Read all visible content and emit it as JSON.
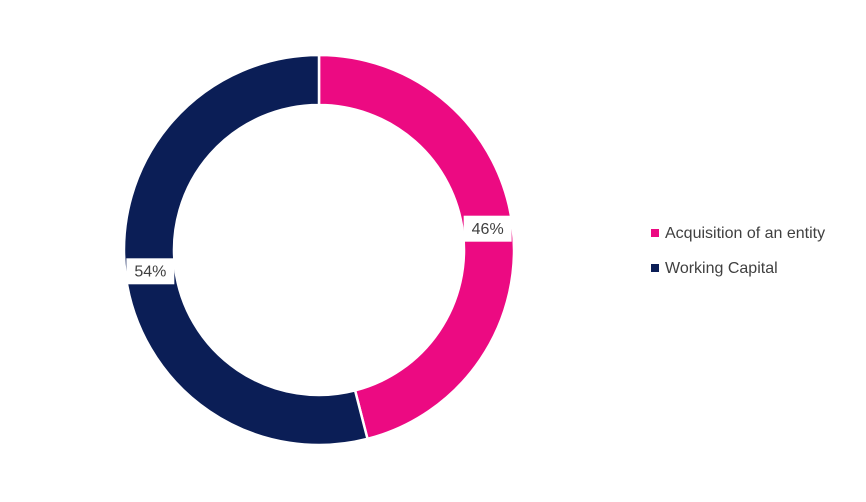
{
  "chart_data": {
    "type": "donut",
    "categories": [
      "Acquisition of an entity",
      "Working Capital"
    ],
    "values": [
      46,
      54
    ],
    "value_labels": [
      "46%",
      "54%"
    ],
    "colors": [
      "#ec0a82",
      "#0b1e56"
    ],
    "legend": "right"
  }
}
